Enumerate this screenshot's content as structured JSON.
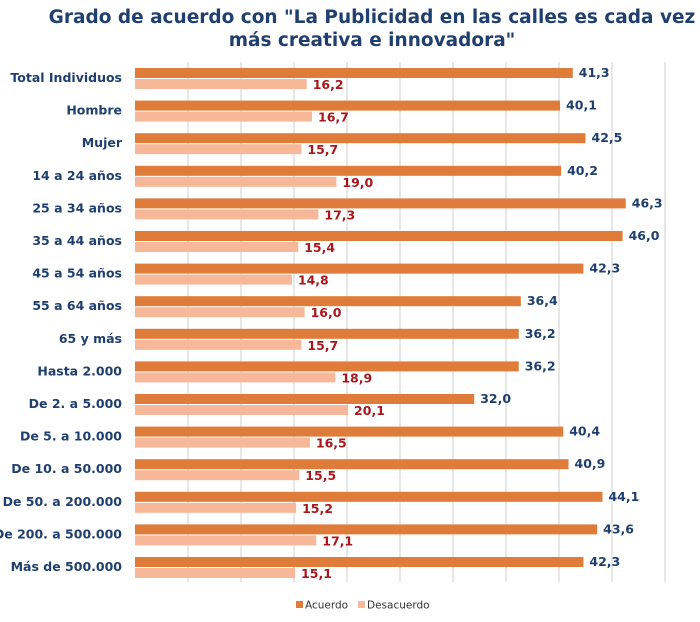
{
  "chart_data": {
    "type": "bar",
    "orientation": "horizontal",
    "title": "Grado de acuerdo con \"La Publicidad en las calles es cada vez más creativa e innovadora\"",
    "title_lines": [
      "Grado de acuerdo con \"La Publicidad en las calles es cada vez",
      "más creativa e innovadora\""
    ],
    "categories": [
      "Total Individuos",
      "Hombre",
      "Mujer",
      "14 a 24 años",
      "25 a 34 años",
      "35 a 44 años",
      "45 a 54 años",
      "55 a 64 años",
      "65 y más",
      "Hasta 2.000",
      "De 2. a 5.000",
      "De 5. a 10.000",
      "De 10. a 50.000",
      "De 50. a 200.000",
      "De 200. a 500.000",
      "Más de 500.000"
    ],
    "series": [
      {
        "name": "Acuerdo",
        "color": "#e07c3a",
        "labels": [
          "41,3",
          "40,1",
          "42,5",
          "40,2",
          "46,3",
          "46,0",
          "42,3",
          "36,4",
          "36,2",
          "36,2",
          "32,0",
          "40,4",
          "40,9",
          "44,1",
          "43,6",
          "42,3"
        ],
        "values": [
          41.3,
          40.1,
          42.5,
          40.2,
          46.3,
          46.0,
          42.3,
          36.4,
          36.2,
          36.2,
          32.0,
          40.4,
          40.9,
          44.1,
          43.6,
          42.3
        ]
      },
      {
        "name": "Desacuerdo",
        "color": "#f7b899",
        "labels": [
          "16,2",
          "16,7",
          "15,7",
          "19,0",
          "17,3",
          "15,4",
          "14,8",
          "16,0",
          "15,7",
          "18,9",
          "20,1",
          "16,5",
          "15,5",
          "15,2",
          "17,1",
          "15,1"
        ],
        "values": [
          16.2,
          16.7,
          15.7,
          19.0,
          17.3,
          15.4,
          14.8,
          16.0,
          15.7,
          18.9,
          20.1,
          16.5,
          15.5,
          15.2,
          17.1,
          15.1
        ]
      }
    ],
    "xlim": [
      0,
      50
    ],
    "grid_step": 5,
    "grid": true,
    "legend": "bottom-center",
    "colors": {
      "title": "#1f3f6e",
      "category": "#1f3f6e",
      "acuerdo_label": "#1f3f6e",
      "desacuerdo_label": "#a8171c",
      "grid": "#cfcfcf"
    }
  }
}
